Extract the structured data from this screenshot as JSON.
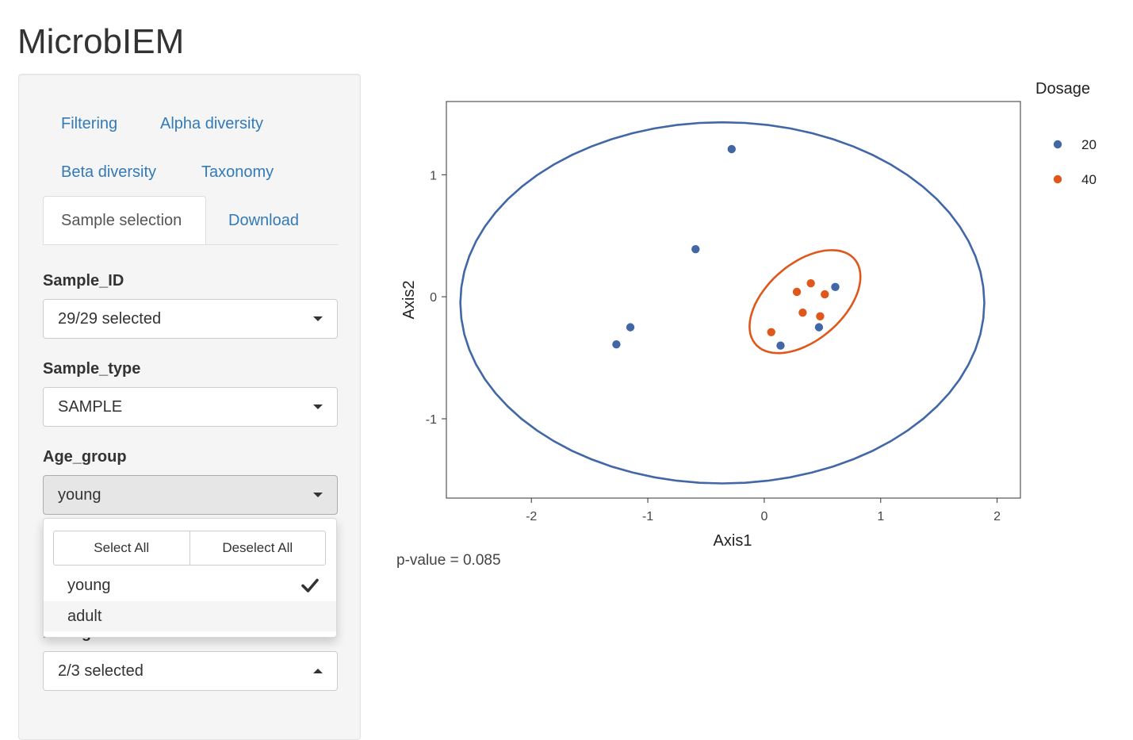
{
  "app": {
    "title": "MicrobIEM"
  },
  "tabs": [
    {
      "label": "Filtering",
      "active": false
    },
    {
      "label": "Alpha diversity",
      "active": false
    },
    {
      "label": "Beta diversity",
      "active": false
    },
    {
      "label": "Taxonomy",
      "active": false
    },
    {
      "label": "Sample selection",
      "active": true
    },
    {
      "label": "Download",
      "active": false
    }
  ],
  "fields": {
    "sample_id": {
      "label": "Sample_ID",
      "value": "29/29 selected"
    },
    "sample_type": {
      "label": "Sample_type",
      "value": "SAMPLE"
    },
    "age_group": {
      "label": "Age_group",
      "value": "young"
    },
    "dosage": {
      "label": "Dosage",
      "value": "2/3 selected"
    }
  },
  "age_dropdown": {
    "select_all": "Select All",
    "deselect_all": "Deselect All",
    "options": [
      {
        "label": "young",
        "selected": true
      },
      {
        "label": "adult",
        "selected": false
      }
    ]
  },
  "plot": {
    "pvalue": "p-value = 0.085"
  },
  "chart_data": {
    "type": "scatter",
    "title": "",
    "xlabel": "Axis1",
    "ylabel": "Axis2",
    "xlim": [
      -2.73,
      2.2
    ],
    "ylim": [
      -1.65,
      1.6
    ],
    "xticks": [
      -2,
      -1,
      0,
      1,
      2
    ],
    "yticks": [
      -1,
      0,
      1
    ],
    "grid": false,
    "legend": {
      "title": "Dosage",
      "position": "right"
    },
    "series": [
      {
        "name": "20",
        "color": "#4267a6",
        "points": [
          {
            "x": -0.28,
            "y": 1.21
          },
          {
            "x": -0.59,
            "y": 0.39
          },
          {
            "x": -1.15,
            "y": -0.25
          },
          {
            "x": -1.27,
            "y": -0.39
          },
          {
            "x": 0.61,
            "y": 0.08
          },
          {
            "x": 0.47,
            "y": -0.25
          },
          {
            "x": 0.14,
            "y": -0.4
          }
        ],
        "ellipse": {
          "cx": -0.36,
          "cy": -0.05,
          "rx": 2.25,
          "ry": 1.48,
          "angle": 0
        }
      },
      {
        "name": "40",
        "color": "#e0571c",
        "points": [
          {
            "x": 0.4,
            "y": 0.11
          },
          {
            "x": 0.28,
            "y": 0.04
          },
          {
            "x": 0.52,
            "y": 0.02
          },
          {
            "x": 0.33,
            "y": -0.13
          },
          {
            "x": 0.48,
            "y": -0.16
          },
          {
            "x": 0.06,
            "y": -0.29
          }
        ],
        "ellipse": {
          "cx": 0.35,
          "cy": -0.04,
          "rx": 0.55,
          "ry": 0.32,
          "angle": 38
        }
      }
    ]
  }
}
